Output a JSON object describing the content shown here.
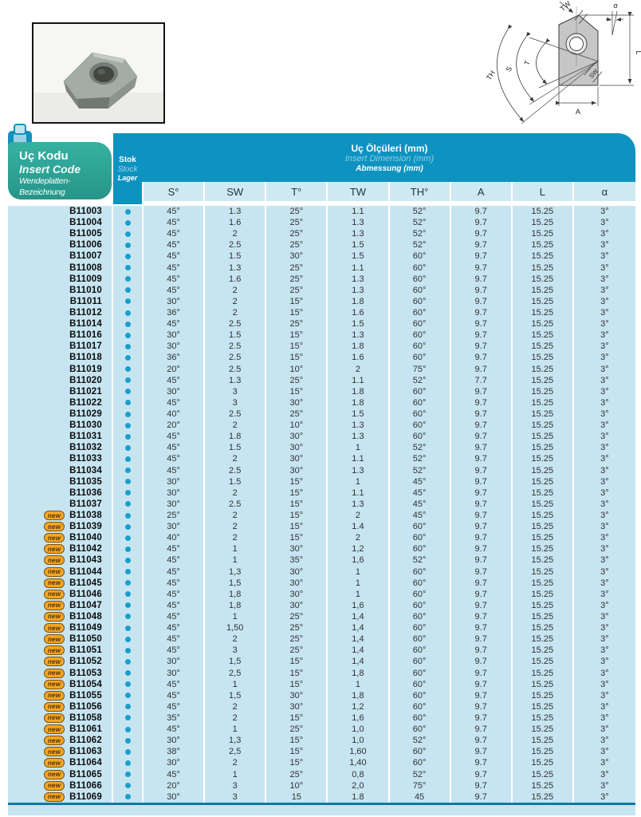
{
  "header": {
    "insert_code_box": {
      "tr": "Uç Kodu",
      "en": "Insert Code",
      "de": "Wendeplatten-Bezeichnung"
    },
    "stock_col": {
      "tr": "Stok",
      "en": "Stock",
      "de": "Lager"
    },
    "dimensions_title": {
      "tr": "Uç Ölçüleri (mm)",
      "en": "Insert Dimension (mm)",
      "de": "Abmessung (mm)"
    }
  },
  "diagram_labels": {
    "tw": "TW",
    "alpha": "α",
    "l": "L",
    "a": "A",
    "sw": "SW",
    "t": "T",
    "s": "S",
    "th": "TH"
  },
  "colors": {
    "band_blue": "#0e93c0",
    "row_light_blue": "#c7e5f1",
    "header_cell_blue": "#cfe9f3",
    "green": "#2da699",
    "stock_dot": "#18a0cc",
    "new_badge": "#f5a623",
    "bottom_line": "#0c7ba6"
  },
  "table": {
    "new_badge_label": "new",
    "columns": [
      "S°",
      "SW",
      "T°",
      "TW",
      "TH°",
      "A",
      "L",
      "α"
    ],
    "rows": [
      {
        "code": "B11003",
        "new": false,
        "stock": true,
        "values": [
          "45°",
          "1.3",
          "25°",
          "1.1",
          "52°",
          "9.7",
          "15.25",
          "3°"
        ]
      },
      {
        "code": "B11004",
        "new": false,
        "stock": true,
        "values": [
          "45°",
          "1.6",
          "25°",
          "1.3",
          "52°",
          "9.7",
          "15.25",
          "3°"
        ]
      },
      {
        "code": "B11005",
        "new": false,
        "stock": true,
        "values": [
          "45°",
          "2",
          "25°",
          "1.3",
          "52°",
          "9.7",
          "15.25",
          "3°"
        ]
      },
      {
        "code": "B11006",
        "new": false,
        "stock": true,
        "values": [
          "45°",
          "2.5",
          "25°",
          "1.5",
          "52°",
          "9.7",
          "15.25",
          "3°"
        ]
      },
      {
        "code": "B11007",
        "new": false,
        "stock": true,
        "values": [
          "45°",
          "1.5",
          "30°",
          "1.5",
          "60°",
          "9.7",
          "15.25",
          "3°"
        ]
      },
      {
        "code": "B11008",
        "new": false,
        "stock": true,
        "values": [
          "45°",
          "1.3",
          "25°",
          "1.1",
          "60°",
          "9.7",
          "15.25",
          "3°"
        ]
      },
      {
        "code": "B11009",
        "new": false,
        "stock": true,
        "values": [
          "45°",
          "1.6",
          "25°",
          "1.3",
          "60°",
          "9.7",
          "15.25",
          "3°"
        ]
      },
      {
        "code": "B11010",
        "new": false,
        "stock": true,
        "values": [
          "45°",
          "2",
          "25°",
          "1.3",
          "60°",
          "9.7",
          "15.25",
          "3°"
        ]
      },
      {
        "code": "B11011",
        "new": false,
        "stock": true,
        "values": [
          "30°",
          "2",
          "15°",
          "1.8",
          "60°",
          "9.7",
          "15.25",
          "3°"
        ]
      },
      {
        "code": "B11012",
        "new": false,
        "stock": true,
        "values": [
          "36°",
          "2",
          "15°",
          "1.6",
          "60°",
          "9.7",
          "15.25",
          "3°"
        ]
      },
      {
        "code": "B11014",
        "new": false,
        "stock": true,
        "values": [
          "45°",
          "2.5",
          "25°",
          "1.5",
          "60°",
          "9.7",
          "15.25",
          "3°"
        ]
      },
      {
        "code": "B11016",
        "new": false,
        "stock": true,
        "values": [
          "30°",
          "1.5",
          "15°",
          "1.3",
          "60°",
          "9.7",
          "15.25",
          "3°"
        ]
      },
      {
        "code": "B11017",
        "new": false,
        "stock": true,
        "values": [
          "30°",
          "2.5",
          "15°",
          "1.8",
          "60°",
          "9.7",
          "15.25",
          "3°"
        ]
      },
      {
        "code": "B11018",
        "new": false,
        "stock": true,
        "values": [
          "36°",
          "2.5",
          "15°",
          "1.6",
          "60°",
          "9.7",
          "15.25",
          "3°"
        ]
      },
      {
        "code": "B11019",
        "new": false,
        "stock": true,
        "values": [
          "20°",
          "2.5",
          "10°",
          "2",
          "75°",
          "9.7",
          "15.25",
          "3°"
        ]
      },
      {
        "code": "B11020",
        "new": false,
        "stock": true,
        "values": [
          "45°",
          "1.3",
          "25°",
          "1.1",
          "52°",
          "7.7",
          "15.25",
          "3°"
        ]
      },
      {
        "code": "B11021",
        "new": false,
        "stock": true,
        "values": [
          "30°",
          "3",
          "15°",
          "1.8",
          "60°",
          "9.7",
          "15.25",
          "3°"
        ]
      },
      {
        "code": "B11022",
        "new": false,
        "stock": true,
        "values": [
          "45°",
          "3",
          "30°",
          "1.8",
          "60°",
          "9.7",
          "15.25",
          "3°"
        ]
      },
      {
        "code": "B11029",
        "new": false,
        "stock": true,
        "values": [
          "40°",
          "2.5",
          "25°",
          "1.5",
          "60°",
          "9.7",
          "15.25",
          "3°"
        ]
      },
      {
        "code": "B11030",
        "new": false,
        "stock": true,
        "values": [
          "20°",
          "2",
          "10°",
          "1.3",
          "60°",
          "9.7",
          "15.25",
          "3°"
        ]
      },
      {
        "code": "B11031",
        "new": false,
        "stock": true,
        "values": [
          "45°",
          "1.8",
          "30°",
          "1.3",
          "60°",
          "9.7",
          "15.25",
          "3°"
        ]
      },
      {
        "code": "B11032",
        "new": false,
        "stock": true,
        "values": [
          "45°",
          "1.5",
          "30°",
          "1",
          "52°",
          "9.7",
          "15.25",
          "3°"
        ]
      },
      {
        "code": "B11033",
        "new": false,
        "stock": true,
        "values": [
          "45°",
          "2",
          "30°",
          "1.1",
          "52°",
          "9.7",
          "15.25",
          "3°"
        ]
      },
      {
        "code": "B11034",
        "new": false,
        "stock": true,
        "values": [
          "45°",
          "2.5",
          "30°",
          "1.3",
          "52°",
          "9.7",
          "15.25",
          "3°"
        ]
      },
      {
        "code": "B11035",
        "new": false,
        "stock": true,
        "values": [
          "30°",
          "1.5",
          "15°",
          "1",
          "45°",
          "9.7",
          "15.25",
          "3°"
        ]
      },
      {
        "code": "B11036",
        "new": false,
        "stock": true,
        "values": [
          "30°",
          "2",
          "15°",
          "1.1",
          "45°",
          "9.7",
          "15.25",
          "3°"
        ]
      },
      {
        "code": "B11037",
        "new": false,
        "stock": true,
        "values": [
          "30°",
          "2.5",
          "15°",
          "1.3",
          "45°",
          "9.7",
          "15.25",
          "3°"
        ]
      },
      {
        "code": "B11038",
        "new": true,
        "stock": true,
        "values": [
          "25°",
          "2",
          "15°",
          "2",
          "45°",
          "9.7",
          "15.25",
          "3°"
        ]
      },
      {
        "code": "B11039",
        "new": true,
        "stock": true,
        "values": [
          "30°",
          "2",
          "15°",
          "1.4",
          "60°",
          "9.7",
          "15.25",
          "3°"
        ]
      },
      {
        "code": "B11040",
        "new": true,
        "stock": true,
        "values": [
          "40°",
          "2",
          "15°",
          "2",
          "60°",
          "9.7",
          "15.25",
          "3°"
        ]
      },
      {
        "code": "B11042",
        "new": true,
        "stock": true,
        "values": [
          "45°",
          "1",
          "30°",
          "1,2",
          "60°",
          "9.7",
          "15.25",
          "3°"
        ]
      },
      {
        "code": "B11043",
        "new": true,
        "stock": true,
        "values": [
          "45°",
          "1",
          "35°",
          "1,6",
          "52°",
          "9.7",
          "15.25",
          "3°"
        ]
      },
      {
        "code": "B11044",
        "new": true,
        "stock": true,
        "values": [
          "45°",
          "1,3",
          "30°",
          "1",
          "60°",
          "9.7",
          "15.25",
          "3°"
        ]
      },
      {
        "code": "B11045",
        "new": true,
        "stock": true,
        "values": [
          "45°",
          "1,5",
          "30°",
          "1",
          "60°",
          "9.7",
          "15.25",
          "3°"
        ]
      },
      {
        "code": "B11046",
        "new": true,
        "stock": true,
        "values": [
          "45°",
          "1,8",
          "30°",
          "1",
          "60°",
          "9.7",
          "15.25",
          "3°"
        ]
      },
      {
        "code": "B11047",
        "new": true,
        "stock": true,
        "values": [
          "45°",
          "1,8",
          "30°",
          "1,6",
          "60°",
          "9.7",
          "15.25",
          "3°"
        ]
      },
      {
        "code": "B11048",
        "new": true,
        "stock": true,
        "values": [
          "45°",
          "1",
          "25°",
          "1,4",
          "60°",
          "9.7",
          "15.25",
          "3°"
        ]
      },
      {
        "code": "B11049",
        "new": true,
        "stock": true,
        "values": [
          "45°",
          "1,50",
          "25°",
          "1,4",
          "60°",
          "9.7",
          "15.25",
          "3°"
        ]
      },
      {
        "code": "B11050",
        "new": true,
        "stock": true,
        "values": [
          "45°",
          "2",
          "25°",
          "1,4",
          "60°",
          "9.7",
          "15.25",
          "3°"
        ]
      },
      {
        "code": "B11051",
        "new": true,
        "stock": true,
        "values": [
          "45°",
          "3",
          "25°",
          "1,4",
          "60°",
          "9.7",
          "15.25",
          "3°"
        ]
      },
      {
        "code": "B11052",
        "new": true,
        "stock": true,
        "values": [
          "30°",
          "1,5",
          "15°",
          "1,4",
          "60°",
          "9.7",
          "15.25",
          "3°"
        ]
      },
      {
        "code": "B11053",
        "new": true,
        "stock": true,
        "values": [
          "30°",
          "2,5",
          "15°",
          "1,8",
          "60°",
          "9.7",
          "15.25",
          "3°"
        ]
      },
      {
        "code": "B11054",
        "new": true,
        "stock": true,
        "values": [
          "45°",
          "1",
          "15°",
          "1",
          "60°",
          "9.7",
          "15.25",
          "3°"
        ]
      },
      {
        "code": "B11055",
        "new": true,
        "stock": true,
        "values": [
          "45°",
          "1,5",
          "30°",
          "1,8",
          "60°",
          "9.7",
          "15.25",
          "3°"
        ]
      },
      {
        "code": "B11056",
        "new": true,
        "stock": true,
        "values": [
          "45°",
          "2",
          "30°",
          "1,2",
          "60°",
          "9.7",
          "15.25",
          "3°"
        ]
      },
      {
        "code": "B11058",
        "new": true,
        "stock": true,
        "values": [
          "35°",
          "2",
          "15°",
          "1,6",
          "60°",
          "9.7",
          "15.25",
          "3°"
        ]
      },
      {
        "code": "B11061",
        "new": true,
        "stock": true,
        "values": [
          "45°",
          "1",
          "25°",
          "1,0",
          "60°",
          "9.7",
          "15.25",
          "3°"
        ]
      },
      {
        "code": "B11062",
        "new": true,
        "stock": true,
        "values": [
          "30°",
          "1,3",
          "15°",
          "1,0",
          "52°",
          "9.7",
          "15.25",
          "3°"
        ]
      },
      {
        "code": "B11063",
        "new": true,
        "stock": true,
        "values": [
          "38°",
          "2,5",
          "15°",
          "1,60",
          "60°",
          "9.7",
          "15.25",
          "3°"
        ]
      },
      {
        "code": "B11064",
        "new": true,
        "stock": true,
        "values": [
          "30°",
          "2",
          "15°",
          "1,40",
          "60°",
          "9.7",
          "15.25",
          "3°"
        ]
      },
      {
        "code": "B11065",
        "new": true,
        "stock": true,
        "values": [
          "45°",
          "1",
          "25°",
          "0,8",
          "52°",
          "9.7",
          "15.25",
          "3°"
        ]
      },
      {
        "code": "B11066",
        "new": true,
        "stock": true,
        "values": [
          "20°",
          "3",
          "10°",
          "2,0",
          "75°",
          "9.7",
          "15.25",
          "3°"
        ]
      },
      {
        "code": "B11069",
        "new": true,
        "stock": true,
        "values": [
          "30°",
          "3",
          "15",
          "1.8",
          "45",
          "9.7",
          "15.25",
          "3°"
        ]
      }
    ]
  }
}
